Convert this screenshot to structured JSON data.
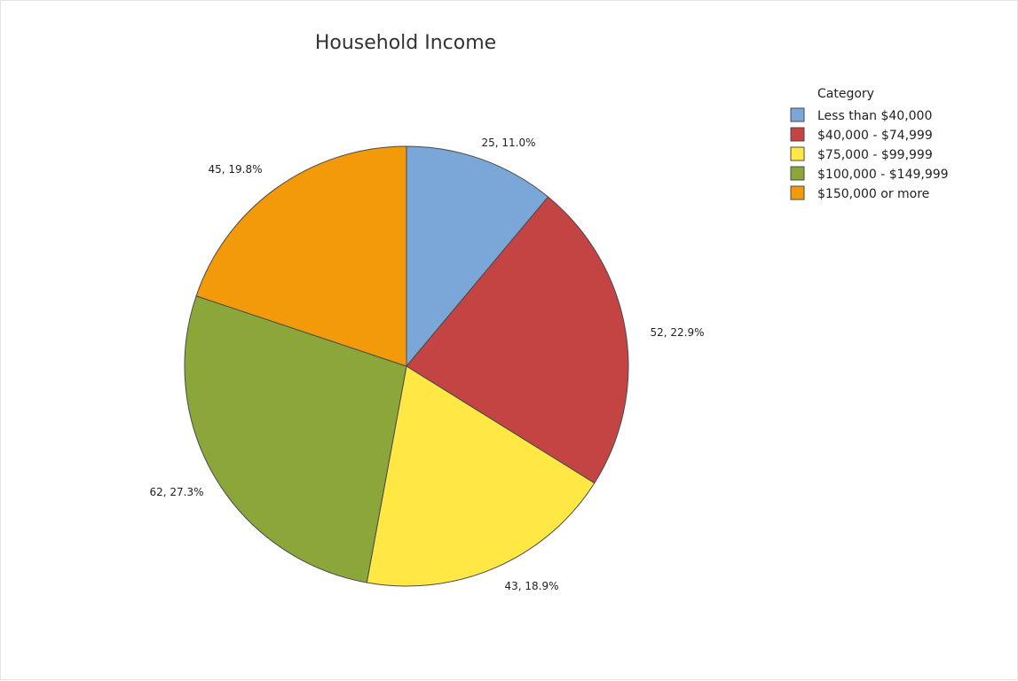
{
  "chart_data": {
    "type": "pie",
    "title": "Household Income",
    "legend_title": "Category",
    "legend_position": "top-right",
    "slices": [
      {
        "label": "Less than $40,000",
        "value": 25,
        "percent": "11.0%",
        "color": "#7BA6D8",
        "text": "25, 11.0%"
      },
      {
        "label": "$40,000 - $74,999",
        "value": 52,
        "percent": "22.9%",
        "color": "#C44444",
        "text": "52, 22.9%"
      },
      {
        "label": "$75,000 - $99,999",
        "value": 43,
        "percent": "18.9%",
        "color": "#FFE843",
        "text": "43, 18.9%"
      },
      {
        "label": "$100,000 - $149,999",
        "value": 62,
        "percent": "27.3%",
        "color": "#8BA73A",
        "text": "62, 27.3%"
      },
      {
        "label": "$150,000 or more",
        "value": 45,
        "percent": "19.8%",
        "color": "#F39A0A",
        "text": "45, 19.8%"
      }
    ]
  }
}
